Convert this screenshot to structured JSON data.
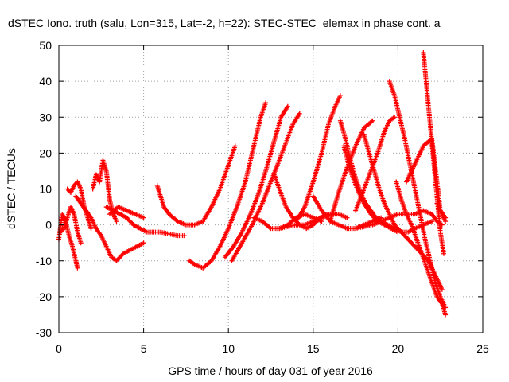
{
  "chart_data": {
    "type": "scatter",
    "title": "dSTEC Iono. truth (salu, Lon=315, Lat=-2, h=22): STEC-STEC_elemax in phase cont. a",
    "xlabel": "GPS time / hours of day 031 of year 2016",
    "ylabel": "dSTEC  / TECUs",
    "xlim": [
      0,
      25
    ],
    "ylim": [
      -30,
      50
    ],
    "xticks": [
      0,
      5,
      10,
      15,
      20,
      25
    ],
    "yticks": [
      -30,
      -20,
      -10,
      0,
      10,
      20,
      30,
      40,
      50
    ],
    "grid": true,
    "marker": "plus",
    "color": "#ff0000",
    "series": [
      {
        "x": [
          0.0,
          0.2,
          0.4,
          0.6,
          0.8,
          1.0,
          1.1
        ],
        "y": [
          -4,
          3,
          1,
          -3,
          -6,
          -10,
          -12
        ]
      },
      {
        "x": [
          0.1,
          0.3,
          0.5,
          0.7,
          0.9,
          1.1,
          1.3
        ],
        "y": [
          -2,
          -1,
          2,
          5,
          3,
          -2,
          -5
        ]
      },
      {
        "x": [
          0.5,
          0.7,
          0.9,
          1.1,
          1.3,
          1.5,
          1.7,
          1.9
        ],
        "y": [
          10,
          9,
          11,
          12,
          10,
          5,
          2,
          -1
        ]
      },
      {
        "x": [
          1.0,
          1.3,
          1.6,
          1.9,
          2.2,
          2.5,
          2.8,
          3.1,
          3.4,
          3.8,
          4.2,
          4.6,
          5.0
        ],
        "y": [
          8,
          6,
          4,
          2,
          -1,
          -3,
          -6,
          -9,
          -10,
          -8,
          -7,
          -6,
          -5
        ]
      },
      {
        "x": [
          2.0,
          2.2,
          2.4,
          2.6,
          2.8,
          3.0,
          3.2,
          3.4
        ],
        "y": [
          10,
          14,
          12,
          18,
          15,
          7,
          3,
          1
        ]
      },
      {
        "x": [
          2.8,
          3.2,
          3.6,
          4.0,
          4.4,
          4.8,
          5.2,
          5.6,
          6.0,
          6.5,
          7.0,
          7.4
        ],
        "y": [
          5,
          4,
          3,
          2,
          0,
          -1,
          -2,
          -2,
          -2,
          -2.5,
          -3,
          -3
        ]
      },
      {
        "x": [
          3.0,
          3.5,
          4.0,
          4.5,
          5.0
        ],
        "y": [
          3,
          5,
          4,
          3,
          2
        ]
      },
      {
        "x": [
          5.8,
          6.0,
          6.2,
          6.5,
          7.0,
          7.5,
          8.0,
          8.5,
          9.0,
          9.5,
          9.8,
          10.1,
          10.4
        ],
        "y": [
          11,
          8,
          5,
          3,
          1,
          0,
          0,
          1,
          5,
          10,
          14,
          18,
          22
        ]
      },
      {
        "x": [
          7.7,
          8.0,
          8.5,
          9.0,
          9.5,
          10.0,
          10.5,
          11.0,
          11.3,
          11.6,
          11.9,
          12.2
        ],
        "y": [
          -10,
          -11,
          -12,
          -10,
          -6,
          -1,
          5,
          12,
          18,
          24,
          30,
          34
        ]
      },
      {
        "x": [
          9.8,
          10.3,
          10.8,
          11.3,
          11.8,
          12.2,
          12.5,
          12.8,
          13.1,
          13.5
        ],
        "y": [
          -9,
          -6,
          -2,
          3,
          9,
          15,
          20,
          25,
          30,
          33
        ]
      },
      {
        "x": [
          10.2,
          10.8,
          11.4,
          12.0,
          12.5,
          13.0,
          13.4,
          13.8,
          14.2
        ],
        "y": [
          -10,
          -5,
          0,
          6,
          12,
          18,
          23,
          28,
          31
        ]
      },
      {
        "x": [
          11.5,
          12.0,
          12.5,
          13.0,
          13.5,
          14.0,
          14.5,
          15.0,
          15.5
        ],
        "y": [
          2,
          1,
          -1,
          -1,
          0,
          2,
          3,
          2,
          1
        ]
      },
      {
        "x": [
          12.7,
          13.0,
          13.4,
          13.8,
          14.2,
          14.6,
          15.0,
          15.4,
          15.8
        ],
        "y": [
          14,
          10,
          5,
          2,
          0,
          -1,
          0,
          2,
          3
        ]
      },
      {
        "x": [
          13.0,
          13.5,
          14.0,
          14.5,
          15.0,
          15.5,
          16.0,
          16.5,
          17.0
        ],
        "y": [
          -1,
          -0.5,
          0,
          0,
          1,
          2,
          3,
          3,
          2
        ]
      },
      {
        "x": [
          14.0,
          14.5,
          15.0,
          15.5,
          15.9,
          16.3,
          16.6
        ],
        "y": [
          1,
          5,
          12,
          20,
          28,
          33,
          36
        ]
      },
      {
        "x": [
          15.0,
          15.5,
          16.0,
          16.5,
          17.0,
          17.5,
          18.0,
          18.5,
          19.0
        ],
        "y": [
          8,
          4,
          1,
          0,
          -1,
          -1,
          0,
          1,
          2
        ]
      },
      {
        "x": [
          16.0,
          16.5,
          17.0,
          17.5,
          18.0,
          18.5
        ],
        "y": [
          1,
          9,
          16,
          22,
          27,
          29
        ]
      },
      {
        "x": [
          16.6,
          16.9,
          17.2,
          17.5,
          17.8,
          18.1,
          18.4,
          18.7,
          19.0,
          19.4,
          19.8,
          20.2,
          20.6,
          21.0,
          21.5,
          22.0
        ],
        "y": [
          29,
          24,
          18,
          13,
          9,
          6,
          4,
          2,
          1,
          0,
          -1,
          -2,
          -2,
          -1,
          0,
          1
        ]
      },
      {
        "x": [
          16.8,
          17.2,
          17.6,
          18.0,
          18.4,
          18.8,
          19.2,
          19.6,
          20.0
        ],
        "y": [
          22,
          15,
          10,
          6,
          3,
          1,
          0,
          -1,
          -2
        ]
      },
      {
        "x": [
          17.5,
          18.0,
          18.5,
          19.0,
          19.5,
          20.0,
          20.5,
          21.0,
          21.5,
          22.0,
          22.3,
          22.6
        ],
        "y": [
          -1,
          -0.5,
          0,
          1,
          2,
          3,
          3,
          3,
          4,
          3,
          1,
          0
        ]
      },
      {
        "x": [
          17.5,
          18.0,
          18.4,
          18.8,
          19.2,
          19.5,
          19.8
        ],
        "y": [
          4,
          10,
          15,
          20,
          26,
          29,
          30
        ]
      },
      {
        "x": [
          18.0,
          18.3,
          18.6,
          18.9,
          19.2,
          19.5,
          19.8,
          20.2,
          20.6,
          21.0,
          21.4,
          21.8,
          22.2,
          22.6
        ],
        "y": [
          25,
          20,
          15,
          10,
          6,
          3,
          0,
          -2,
          -4,
          -6,
          -8,
          -10,
          -14,
          -18
        ]
      },
      {
        "x": [
          19.5,
          19.8,
          20.1,
          20.4,
          20.7,
          21.0,
          21.3,
          21.6,
          21.9,
          22.2,
          22.5,
          22.8
        ],
        "y": [
          40,
          36,
          30,
          24,
          17,
          10,
          3,
          -4,
          -10,
          -16,
          -20,
          -23
        ]
      },
      {
        "x": [
          19.9,
          20.2,
          20.5,
          20.8,
          21.1,
          21.4,
          21.7,
          22.0,
          22.3,
          22.6,
          22.8
        ],
        "y": [
          12,
          7,
          3,
          0,
          -4,
          -8,
          -12,
          -16,
          -20,
          -22,
          -25
        ]
      },
      {
        "x": [
          20.5,
          21.0,
          21.5,
          22.0,
          22.5,
          22.8
        ],
        "y": [
          12,
          17,
          22,
          24,
          4,
          2
        ]
      },
      {
        "x": [
          21.5,
          21.7,
          21.9,
          22.1,
          22.3,
          22.5,
          22.7
        ],
        "y": [
          48,
          38,
          28,
          18,
          8,
          -2,
          -8
        ]
      },
      {
        "x": [
          22.3,
          22.5,
          22.7,
          22.8
        ],
        "y": [
          6,
          4,
          2,
          1
        ]
      }
    ]
  }
}
